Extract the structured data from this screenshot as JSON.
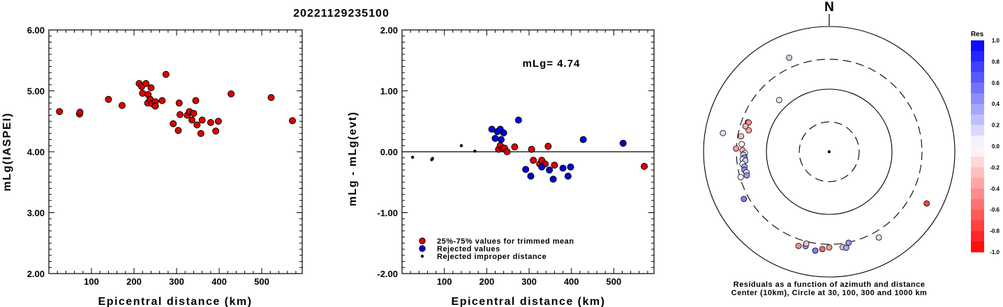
{
  "title": "20221129235100",
  "chart_data": [
    {
      "type": "scatter",
      "xlabel": "Epicentral distance (km)",
      "ylabel": "mLg(IASPEI)",
      "xlim": [
        0,
        595
      ],
      "ylim": [
        2.0,
        6.0
      ],
      "x_ticks": [
        "100",
        "200",
        "300",
        "400",
        "500"
      ],
      "y_ticks": [
        "2.00",
        "3.00",
        "4.00",
        "5.00",
        "6.00"
      ],
      "points": [
        {
          "x": 25,
          "y": 4.66
        },
        {
          "x": 72,
          "y": 4.62
        },
        {
          "x": 73,
          "y": 4.65
        },
        {
          "x": 140,
          "y": 4.86
        },
        {
          "x": 172,
          "y": 4.76
        },
        {
          "x": 212,
          "y": 5.12
        },
        {
          "x": 218,
          "y": 5.07
        },
        {
          "x": 220,
          "y": 4.96
        },
        {
          "x": 228,
          "y": 5.12
        },
        {
          "x": 233,
          "y": 4.94
        },
        {
          "x": 232,
          "y": 4.8
        },
        {
          "x": 238,
          "y": 4.86
        },
        {
          "x": 240,
          "y": 5.05
        },
        {
          "x": 242,
          "y": 4.79
        },
        {
          "x": 250,
          "y": 4.82
        },
        {
          "x": 250,
          "y": 4.75
        },
        {
          "x": 266,
          "y": 4.84
        },
        {
          "x": 275,
          "y": 5.27
        },
        {
          "x": 292,
          "y": 4.46
        },
        {
          "x": 304,
          "y": 4.35
        },
        {
          "x": 306,
          "y": 4.8
        },
        {
          "x": 308,
          "y": 4.61
        },
        {
          "x": 325,
          "y": 4.6
        },
        {
          "x": 330,
          "y": 4.66
        },
        {
          "x": 336,
          "y": 4.52
        },
        {
          "x": 340,
          "y": 4.63
        },
        {
          "x": 345,
          "y": 4.84
        },
        {
          "x": 348,
          "y": 4.44
        },
        {
          "x": 357,
          "y": 4.3
        },
        {
          "x": 360,
          "y": 4.52
        },
        {
          "x": 380,
          "y": 4.48
        },
        {
          "x": 392,
          "y": 4.34
        },
        {
          "x": 398,
          "y": 4.5
        },
        {
          "x": 428,
          "y": 4.95
        },
        {
          "x": 522,
          "y": 4.89
        },
        {
          "x": 572,
          "y": 4.51
        }
      ]
    },
    {
      "type": "scatter",
      "xlabel": "Epicentral distance (km)",
      "ylabel": "mLg - mLg(evt)",
      "annotation": "mLg= 4.74",
      "xlim": [
        0,
        595
      ],
      "ylim": [
        -2.0,
        2.0
      ],
      "x_ticks": [
        "100",
        "200",
        "300",
        "400",
        "500"
      ],
      "y_ticks": [
        "-2.00",
        "-1.00",
        "0.00",
        "1.00",
        "2.00"
      ],
      "reference_line_y": 0.0,
      "legend": [
        {
          "label": "25%-75% values for trimmed mean",
          "color": "#dd0000"
        },
        {
          "label": "Rejected values",
          "color": "#0000dd"
        },
        {
          "label": "Rejected improper distance",
          "color": "#000000"
        }
      ],
      "series": [
        {
          "name": "25%-75% values for trimmed mean",
          "color": "#dd0000",
          "points": [
            {
              "x": 228,
              "y": 0.04
            },
            {
              "x": 232,
              "y": 0.1
            },
            {
              "x": 238,
              "y": 0.05
            },
            {
              "x": 242,
              "y": 0.06
            },
            {
              "x": 248,
              "y": 0.0
            },
            {
              "x": 266,
              "y": 0.08
            },
            {
              "x": 306,
              "y": 0.04
            },
            {
              "x": 310,
              "y": -0.14
            },
            {
              "x": 325,
              "y": -0.2
            },
            {
              "x": 330,
              "y": -0.14
            },
            {
              "x": 338,
              "y": -0.2
            },
            {
              "x": 345,
              "y": 0.09
            },
            {
              "x": 360,
              "y": -0.22
            },
            {
              "x": 572,
              "y": -0.24
            }
          ]
        },
        {
          "name": "Rejected values",
          "color": "#0000dd",
          "points": [
            {
              "x": 212,
              "y": 0.37
            },
            {
              "x": 220,
              "y": 0.22
            },
            {
              "x": 225,
              "y": 0.33
            },
            {
              "x": 232,
              "y": 0.37
            },
            {
              "x": 234,
              "y": 0.2
            },
            {
              "x": 240,
              "y": 0.31
            },
            {
              "x": 275,
              "y": 0.52
            },
            {
              "x": 292,
              "y": -0.29
            },
            {
              "x": 304,
              "y": -0.4
            },
            {
              "x": 330,
              "y": -0.25
            },
            {
              "x": 348,
              "y": -0.3
            },
            {
              "x": 357,
              "y": -0.45
            },
            {
              "x": 380,
              "y": -0.27
            },
            {
              "x": 392,
              "y": -0.4
            },
            {
              "x": 398,
              "y": -0.25
            },
            {
              "x": 428,
              "y": 0.2
            },
            {
              "x": 522,
              "y": 0.14
            }
          ]
        },
        {
          "name": "Rejected improper distance",
          "color": "#000000",
          "points": [
            {
              "x": 25,
              "y": -0.09
            },
            {
              "x": 70,
              "y": -0.13
            },
            {
              "x": 72,
              "y": -0.11
            },
            {
              "x": 140,
              "y": 0.1
            },
            {
              "x": 172,
              "y": 0.01
            }
          ]
        }
      ]
    },
    {
      "type": "polar-scatter",
      "north_label": "N",
      "caption_line1": "Residuals as a function of azimuth and distance",
      "caption_line2": "Center (10km), Circle at 30, 100, 300 and 1000 km",
      "rings_km": [
        30,
        100,
        300,
        1000
      ],
      "colorbar_title": "Res",
      "colorbar_ticks": [
        "1.0",
        "0.8",
        "0.6",
        "0.4",
        "0.2",
        "0.0",
        "-0.2",
        "-0.4",
        "-0.6",
        "-0.8",
        "-1.0"
      ],
      "colorbar_range": [
        -1.0,
        1.0
      ],
      "points": [
        {
          "az": 337,
          "dist": 428,
          "res": 0.2
        },
        {
          "az": 316,
          "dist": 140,
          "res": 0.1
        },
        {
          "az": 280,
          "dist": 522,
          "res": 0.14
        },
        {
          "az": 285,
          "dist": 212,
          "res": -0.35
        },
        {
          "az": 290,
          "dist": 238,
          "res": -0.2
        },
        {
          "az": 290,
          "dist": 232,
          "res": -0.45
        },
        {
          "az": 287,
          "dist": 248,
          "res": -0.3
        },
        {
          "az": 280,
          "dist": 266,
          "res": -0.25
        },
        {
          "az": 275,
          "dist": 250,
          "res": -0.05
        },
        {
          "az": 272,
          "dist": 304,
          "res": -0.4
        },
        {
          "az": 271,
          "dist": 240,
          "res": -0.3
        },
        {
          "az": 269,
          "dist": 220,
          "res": 0.0
        },
        {
          "az": 268,
          "dist": 233,
          "res": 0.2
        },
        {
          "az": 266,
          "dist": 225,
          "res": 0.4
        },
        {
          "az": 265,
          "dist": 242,
          "res": 0.1
        },
        {
          "az": 264,
          "dist": 220,
          "res": 0.2
        },
        {
          "az": 262,
          "dist": 248,
          "res": 0.0
        },
        {
          "az": 260,
          "dist": 234,
          "res": 0.3
        },
        {
          "az": 258,
          "dist": 240,
          "res": 0.45
        },
        {
          "az": 256,
          "dist": 228,
          "res": 0.1
        },
        {
          "az": 254,
          "dist": 232,
          "res": 0.4
        },
        {
          "az": 254,
          "dist": 292,
          "res": 0.05
        },
        {
          "az": 241,
          "dist": 357,
          "res": 0.5
        },
        {
          "az": 150,
          "dist": 380,
          "res": -0.15
        },
        {
          "az": 118,
          "dist": 572,
          "res": -0.75
        },
        {
          "az": 168,
          "dist": 306,
          "res": 0.4
        },
        {
          "az": 172,
          "dist": 345,
          "res": -0.25
        },
        {
          "az": 170,
          "dist": 360,
          "res": 0.35
        },
        {
          "az": 180,
          "dist": 336,
          "res": -0.4
        },
        {
          "az": 184,
          "dist": 360,
          "res": -0.6
        },
        {
          "az": 188,
          "dist": 392,
          "res": 0.5
        },
        {
          "az": 194,
          "dist": 356,
          "res": 0.4
        },
        {
          "az": 194,
          "dist": 324,
          "res": -0.25
        },
        {
          "az": 198,
          "dist": 380,
          "res": -0.45
        }
      ]
    }
  ]
}
